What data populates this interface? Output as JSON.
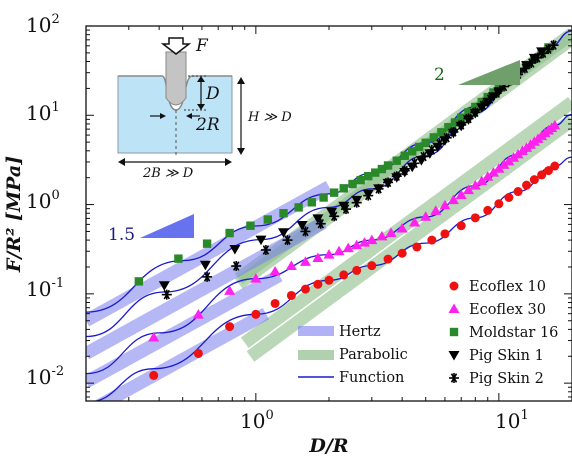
{
  "chart_data": {
    "type": "scatter",
    "xlabel": "D/R",
    "ylabel": "F/R² [MPa]",
    "xscale": "log",
    "yscale": "log",
    "xlim": [
      0.2,
      20
    ],
    "ylim": [
      0.00631,
      100
    ],
    "x_ticks": [
      {
        "label_base": "10",
        "label_exp": "0",
        "value": 1
      },
      {
        "label_base": "10",
        "label_exp": "1",
        "value": 10
      }
    ],
    "y_ticks": [
      {
        "label_base": "10",
        "label_exp": "-2",
        "value": 0.01
      },
      {
        "label_base": "10",
        "label_exp": "-1",
        "value": 0.1
      },
      {
        "label_base": "10",
        "label_exp": "0",
        "value": 1
      },
      {
        "label_base": "10",
        "label_exp": "1",
        "value": 10
      },
      {
        "label_base": "10",
        "label_exp": "2",
        "value": 100
      }
    ],
    "grid": false,
    "legend_position": "bottom-right",
    "series": [
      {
        "name": "Ecoflex 10",
        "marker": "circle",
        "color": "#ee1111",
        "points": [
          [
            0.38,
            0.0122
          ],
          [
            0.58,
            0.0215
          ],
          [
            0.78,
            0.043
          ],
          [
            1.0,
            0.059
          ],
          [
            1.2,
            0.078
          ],
          [
            1.4,
            0.096
          ],
          [
            1.6,
            0.113
          ],
          [
            1.8,
            0.128
          ],
          [
            2.0,
            0.142
          ],
          [
            2.3,
            0.163
          ],
          [
            2.6,
            0.183
          ],
          [
            3.0,
            0.207
          ],
          [
            3.5,
            0.245
          ],
          [
            4.0,
            0.285
          ],
          [
            4.6,
            0.335
          ],
          [
            5.3,
            0.4
          ],
          [
            6.0,
            0.47
          ],
          [
            7.0,
            0.58
          ],
          [
            8.0,
            0.71
          ],
          [
            9.0,
            0.86
          ],
          [
            10.0,
            1.02
          ],
          [
            11.0,
            1.2
          ],
          [
            12.0,
            1.4
          ],
          [
            13.0,
            1.65
          ],
          [
            14.0,
            1.9
          ],
          [
            15.0,
            2.15
          ],
          [
            16.0,
            2.4
          ],
          [
            17.0,
            2.7
          ]
        ]
      },
      {
        "name": "Ecoflex 30",
        "marker": "triangle",
        "color": "#ff22ee",
        "points": [
          [
            0.38,
            0.0325
          ],
          [
            0.58,
            0.0585
          ],
          [
            0.78,
            0.108
          ],
          [
            1.0,
            0.148
          ],
          [
            1.2,
            0.178
          ],
          [
            1.4,
            0.205
          ],
          [
            1.6,
            0.228
          ],
          [
            1.8,
            0.252
          ],
          [
            2.0,
            0.275
          ],
          [
            2.2,
            0.3
          ],
          [
            2.4,
            0.325
          ],
          [
            2.6,
            0.35
          ],
          [
            2.8,
            0.375
          ],
          [
            3.0,
            0.4
          ],
          [
            3.3,
            0.44
          ],
          [
            3.6,
            0.48
          ],
          [
            4.0,
            0.54
          ],
          [
            4.5,
            0.63
          ],
          [
            5.0,
            0.73
          ],
          [
            5.5,
            0.85
          ],
          [
            6.0,
            0.98
          ],
          [
            6.5,
            1.12
          ],
          [
            7.0,
            1.28
          ],
          [
            7.5,
            1.45
          ],
          [
            8.0,
            1.63
          ],
          [
            8.5,
            1.83
          ],
          [
            9.0,
            2.05
          ],
          [
            9.5,
            2.28
          ],
          [
            10.0,
            2.52
          ],
          [
            10.5,
            2.78
          ],
          [
            11.0,
            3.05
          ],
          [
            11.5,
            3.35
          ],
          [
            12.0,
            3.65
          ],
          [
            12.5,
            3.98
          ],
          [
            13.0,
            4.32
          ],
          [
            13.5,
            4.68
          ],
          [
            14.0,
            5.05
          ],
          [
            14.5,
            5.45
          ],
          [
            15.0,
            5.85
          ],
          [
            15.5,
            6.3
          ],
          [
            16.0,
            6.75
          ],
          [
            16.5,
            7.2
          ],
          [
            17.0,
            7.7
          ]
        ]
      },
      {
        "name": "Moldstar 16",
        "marker": "square",
        "color": "#2a8a2a",
        "points": [
          [
            0.33,
            0.138
          ],
          [
            0.48,
            0.248
          ],
          [
            0.63,
            0.365
          ],
          [
            0.78,
            0.48
          ],
          [
            0.95,
            0.58
          ],
          [
            1.12,
            0.68
          ],
          [
            1.3,
            0.8
          ],
          [
            1.5,
            0.93
          ],
          [
            1.7,
            1.06
          ],
          [
            1.9,
            1.2
          ],
          [
            2.1,
            1.36
          ],
          [
            2.3,
            1.52
          ],
          [
            2.5,
            1.7
          ],
          [
            2.7,
            1.88
          ],
          [
            2.9,
            2.08
          ],
          [
            3.1,
            2.28
          ],
          [
            3.3,
            2.5
          ],
          [
            3.5,
            2.74
          ],
          [
            3.8,
            3.1
          ],
          [
            4.1,
            3.52
          ],
          [
            4.4,
            3.95
          ],
          [
            4.7,
            4.42
          ],
          [
            5.0,
            4.92
          ],
          [
            5.4,
            5.65
          ],
          [
            5.8,
            6.45
          ],
          [
            6.2,
            7.35
          ],
          [
            6.6,
            8.3
          ],
          [
            7.0,
            9.4
          ],
          [
            7.5,
            10.8
          ],
          [
            8.0,
            12.4
          ],
          [
            8.5,
            14.1
          ],
          [
            9.0,
            16.0
          ],
          [
            9.5,
            18.0
          ],
          [
            10.0,
            20.2
          ],
          [
            11.0,
            25.0
          ],
          [
            12.0,
            30.5
          ],
          [
            13.0,
            36.5
          ],
          [
            14.0,
            43.0
          ],
          [
            15.0,
            50.0
          ],
          [
            16.0,
            57.5
          ]
        ]
      },
      {
        "name": "Pig Skin 1",
        "marker": "triangle-down",
        "color": "#000000",
        "points": [
          [
            0.42,
            0.125
          ],
          [
            0.62,
            0.212
          ],
          [
            0.82,
            0.318
          ],
          [
            1.05,
            0.405
          ],
          [
            1.3,
            0.49
          ],
          [
            1.55,
            0.59
          ],
          [
            1.8,
            0.7
          ],
          [
            2.05,
            0.83
          ],
          [
            2.3,
            0.97
          ],
          [
            2.6,
            1.13
          ],
          [
            2.9,
            1.32
          ],
          [
            3.2,
            1.52
          ],
          [
            3.5,
            1.75
          ],
          [
            3.8,
            2.02
          ],
          [
            4.1,
            2.32
          ],
          [
            4.4,
            2.65
          ],
          [
            4.8,
            3.15
          ],
          [
            5.2,
            3.75
          ],
          [
            5.6,
            4.45
          ],
          [
            6.0,
            5.25
          ],
          [
            6.5,
            6.35
          ],
          [
            7.0,
            7.6
          ],
          [
            7.5,
            9.0
          ],
          [
            8.0,
            10.6
          ],
          [
            8.5,
            12.3
          ],
          [
            9.0,
            14.2
          ],
          [
            9.5,
            16.3
          ],
          [
            10.0,
            18.6
          ],
          [
            11.0,
            23.8
          ],
          [
            12.0,
            29.8
          ],
          [
            13.0,
            36.5
          ],
          [
            14.0,
            44.0
          ],
          [
            15.0,
            52.0
          ]
        ]
      },
      {
        "name": "Pig Skin 2",
        "marker": "asterisk",
        "color": "#000000",
        "points": [
          [
            0.43,
            0.098
          ],
          [
            0.63,
            0.155
          ],
          [
            0.83,
            0.205
          ],
          [
            1.1,
            0.31
          ],
          [
            1.35,
            0.4
          ],
          [
            1.6,
            0.5
          ],
          [
            1.85,
            0.61
          ],
          [
            2.1,
            0.74
          ],
          [
            2.35,
            0.89
          ],
          [
            2.6,
            1.05
          ],
          [
            2.9,
            1.26
          ],
          [
            3.2,
            1.5
          ],
          [
            3.5,
            1.77
          ],
          [
            3.8,
            2.08
          ],
          [
            4.1,
            2.4
          ],
          [
            4.5,
            2.9
          ],
          [
            4.9,
            3.45
          ],
          [
            5.3,
            4.08
          ],
          [
            5.7,
            4.8
          ],
          [
            6.1,
            5.6
          ],
          [
            6.5,
            6.5
          ],
          [
            7.0,
            7.8
          ],
          [
            7.5,
            9.2
          ],
          [
            8.0,
            10.8
          ],
          [
            8.6,
            12.9
          ],
          [
            9.2,
            15.2
          ],
          [
            9.8,
            17.7
          ],
          [
            10.5,
            21.0
          ],
          [
            11.2,
            24.5
          ],
          [
            12.0,
            28.8
          ],
          [
            12.8,
            33.5
          ],
          [
            13.6,
            38.5
          ],
          [
            14.4,
            44.0
          ],
          [
            15.2,
            49.5
          ],
          [
            16.0,
            55.0
          ],
          [
            16.8,
            61.0
          ]
        ]
      }
    ],
    "fits": {
      "hertz": {
        "name": "Hertz",
        "color": "#7b7fef",
        "opacity": 0.55,
        "slope": 1.5,
        "bands": [
          {
            "x": [
              0.2,
              2.0
            ],
            "a": 0.56
          },
          {
            "x": [
              0.2,
              1.9
            ],
            "a": 0.24
          },
          {
            "x": [
              0.2,
              1.25
            ],
            "a": 0.115
          },
          {
            "x": [
              0.2,
              1.1
            ],
            "a": 0.052
          }
        ]
      },
      "parabolic": {
        "name": "Parabolic",
        "color": "#8dbd8a",
        "opacity": 0.6,
        "slope": 2.0,
        "bands": [
          {
            "x": [
              0.85,
              20
            ],
            "a": 0.205
          },
          {
            "x": [
              0.85,
              20
            ],
            "a": 0.18
          },
          {
            "x": [
              0.9,
              20
            ],
            "a": 0.035
          },
          {
            "x": [
              0.95,
              20
            ],
            "a": 0.022
          }
        ]
      },
      "function": {
        "name": "Function",
        "color": "#1a1ad0",
        "curves": [
          {
            "points": [
              [
                0.2,
                0.0625
              ],
              [
                0.5,
                0.236
              ],
              [
                1.0,
                0.575
              ],
              [
                2.0,
                1.32
              ],
              [
                3.0,
                2.25
              ],
              [
                5.0,
                4.92
              ],
              [
                8.0,
                12.4
              ],
              [
                12.0,
                30.5
              ],
              [
                16.0,
                57.5
              ],
              [
                20.0,
                88.0
              ]
            ]
          },
          {
            "points": [
              [
                0.2,
                0.0333
              ],
              [
                0.42,
                0.105
              ],
              [
                1.05,
                0.405
              ],
              [
                2.0,
                0.93
              ],
              [
                3.0,
                1.5
              ],
              [
                5.0,
                3.55
              ],
              [
                8.0,
                10.6
              ],
              [
                12.0,
                29.8
              ],
              [
                16.0,
                57.0
              ],
              [
                20.0,
                88.0
              ]
            ]
          },
          {
            "points": [
              [
                0.2,
                0.0128
              ],
              [
                0.4,
                0.0365
              ],
              [
                1.0,
                0.148
              ],
              [
                2.0,
                0.275
              ],
              [
                3.0,
                0.4
              ],
              [
                5.0,
                0.73
              ],
              [
                8.0,
                1.63
              ],
              [
                12.0,
                3.65
              ],
              [
                17.0,
                7.7
              ],
              [
                20.0,
                10.2
              ]
            ]
          },
          {
            "points": [
              [
                0.2,
                0.0061
              ],
              [
                0.38,
                0.0145
              ],
              [
                1.0,
                0.059
              ],
              [
                2.0,
                0.142
              ],
              [
                3.0,
                0.207
              ],
              [
                5.0,
                0.37
              ],
              [
                8.0,
                0.71
              ],
              [
                12.0,
                1.4
              ],
              [
                17.0,
                2.7
              ],
              [
                20.0,
                3.4
              ]
            ]
          }
        ]
      }
    },
    "legend_fits": [
      "Hertz",
      "Parabolic",
      "Function"
    ],
    "slope_annotations": [
      {
        "label": "1.5",
        "color": "#6672ee",
        "text_color": "#1a1a8a"
      },
      {
        "label": "2",
        "color": "#6f9f6b",
        "text_color": "#1a6a1a"
      }
    ]
  },
  "inset": {
    "labels": {
      "force": "F",
      "depth": "D",
      "radius": "2R",
      "height": "H ≫ D",
      "width": "2B ≫ D"
    }
  }
}
